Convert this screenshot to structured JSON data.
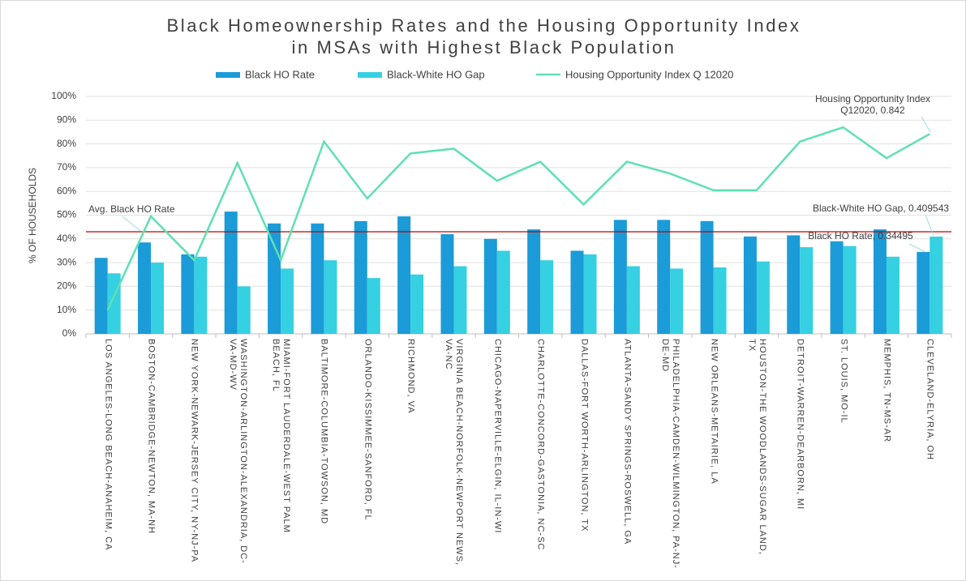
{
  "chart_data": {
    "type": "bar_line",
    "title": [
      "Black Homeownership Rates and the Housing Opportunity Index",
      "in MSAs with Highest Black Population"
    ],
    "ylabel": "% OF HOUSEHOLDS",
    "categories": [
      "LOS ANGELES-LONG BEACH-ANAHEIM, CA",
      "BOSTON-CAMBRIDGE-NEWTON, MA-NH",
      "NEW YORK-NEWARK-JERSEY CITY, NY-NJ-PA",
      "WASHINGTON-ARLINGTON-ALEXANDRIA, DC-VA-MD-WV",
      "MIAMI-FORT LAUDERDALE-WEST PALM BEACH, FL",
      "BALTIMORE-COLUMBIA-TOWSON, MD",
      "ORLANDO-KISSIMMEE-SANFORD, FL",
      "RICHMOND, VA",
      "VIRGINIA BEACH-NORFOLK-NEWPORT NEWS, VA-NC",
      "CHICAGO-NAPERVILLE-ELGIN, IL-IN-WI",
      "CHARLOTTE-CONCORD-GASTONIA, NC-SC",
      "DALLAS-FORT WORTH-ARLINGTON, TX",
      "ATLANTA-SANDY SPRINGS-ROSWELL, GA",
      "PHILADELPHIA-CAMDEN-WILMINGTON, PA-NJ-DE-MD",
      "NEW ORLEANS-METAIRIE, LA",
      "HOUSTON-THE WOODLANDS-SUGAR LAND, TX",
      "DETROIT-WARREN-DEARBORN, MI",
      "ST. LOUIS, MO-IL",
      "MEMPHIS, TN-MS-AR",
      "CLEVELAND-ELYRIA, OH"
    ],
    "series": [
      {
        "name": "Black HO Rate",
        "type": "bar",
        "color": "#1b9bd7",
        "values": [
          32,
          38.5,
          33.5,
          51.5,
          46.5,
          46.5,
          47.5,
          49.5,
          42,
          40,
          44,
          35,
          48,
          48,
          47.5,
          41,
          41.5,
          39,
          44,
          34.495
        ]
      },
      {
        "name": "Black-White HO Gap",
        "type": "bar",
        "color": "#35d0e2",
        "values": [
          25.5,
          30,
          32.5,
          20,
          27.5,
          31,
          23.5,
          25,
          28.5,
          35,
          31,
          33.5,
          28.5,
          27.5,
          28,
          30.5,
          36.5,
          37,
          32.5,
          40.9543
        ]
      },
      {
        "name": "Housing Opportunity Index Q 12020",
        "type": "line",
        "color": "#5fe0b2",
        "values": [
          10,
          49.5,
          31,
          72,
          31,
          81,
          57,
          76,
          78,
          64.5,
          72.5,
          54.5,
          72.5,
          67.5,
          60.5,
          60.5,
          81,
          87,
          74,
          84.2
        ]
      }
    ],
    "reference_line": {
      "label": "Avg. Black HO Rate",
      "value": 43,
      "color": "#c00000"
    },
    "annotations": [
      "Housing Opportunity Index Q12020, 0.842",
      "Black-White HO Gap, 0.409543",
      "Black HO Rate, 0.34495"
    ],
    "ylim": [
      0,
      100
    ],
    "yticks": [
      {
        "value": 0,
        "label": "0%"
      },
      {
        "value": 10,
        "label": "10%"
      },
      {
        "value": 20,
        "label": "20%"
      },
      {
        "value": 30,
        "label": "30%"
      },
      {
        "value": 40,
        "label": "40%"
      },
      {
        "value": 50,
        "label": "50%"
      },
      {
        "value": 60,
        "label": "60%"
      },
      {
        "value": 70,
        "label": "70%"
      },
      {
        "value": 80,
        "label": "80%"
      },
      {
        "value": 90,
        "label": "90%"
      },
      {
        "value": 100,
        "label": "100%"
      }
    ],
    "grid": true
  }
}
